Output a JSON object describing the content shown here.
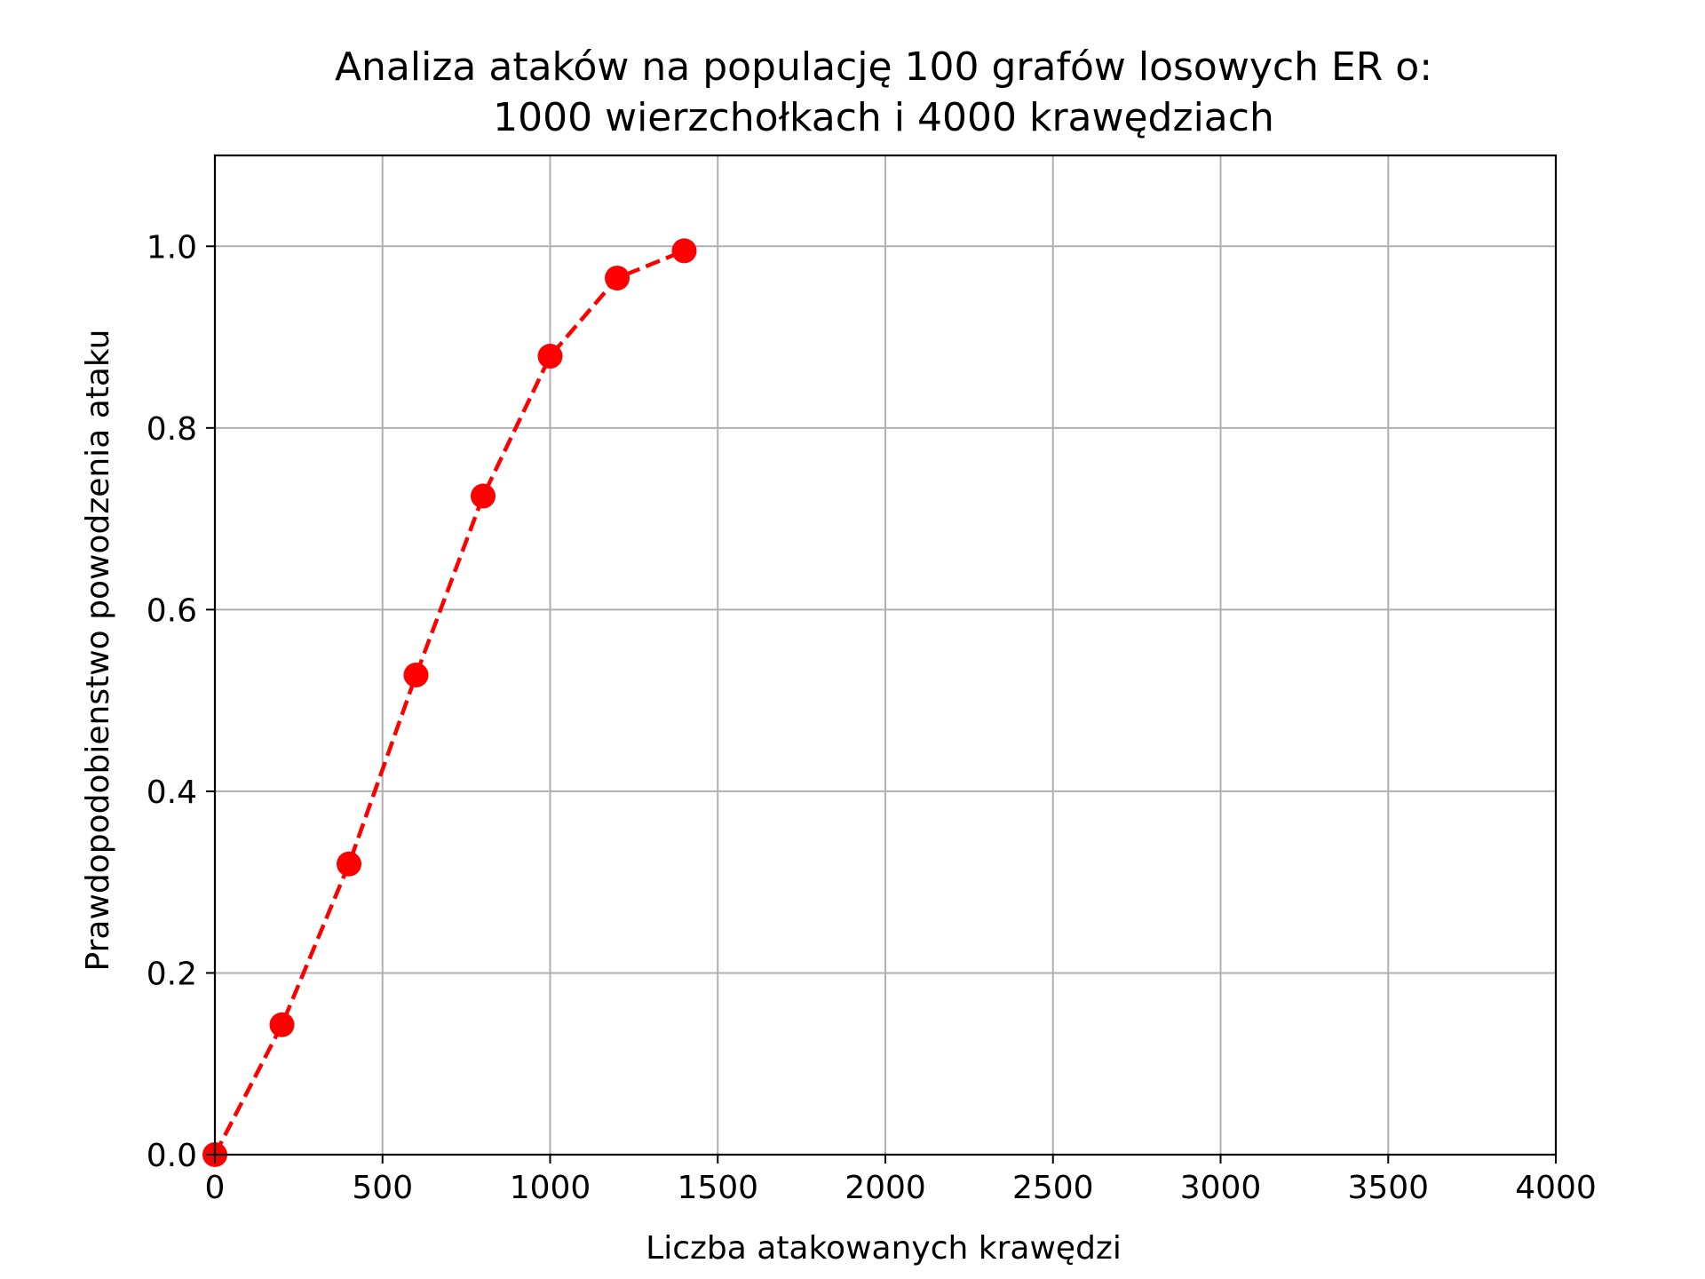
{
  "chart_data": {
    "type": "line",
    "title_lines": [
      "Analiza ataków na populację 100 grafów losowych ER o:",
      "1000 wierzchołkach i 4000 krawędziach"
    ],
    "xlabel": "Liczba atakowanych krawędzi",
    "ylabel": "Prawdopodobienstwo powodzenia ataku",
    "xlim": [
      0,
      4000
    ],
    "ylim": [
      0,
      1.1
    ],
    "x_ticks": [
      0,
      500,
      1000,
      1500,
      2000,
      2500,
      3000,
      3500,
      4000
    ],
    "y_ticks": [
      0.0,
      0.2,
      0.4,
      0.6,
      0.8,
      1.0
    ],
    "x_tick_labels": [
      "0",
      "500",
      "1000",
      "1500",
      "2000",
      "2500",
      "3000",
      "3500",
      "4000"
    ],
    "y_tick_labels": [
      "0.0",
      "0.2",
      "0.4",
      "0.6",
      "0.8",
      "1.0"
    ],
    "grid": true,
    "series": [
      {
        "x": [
          0,
          200,
          400,
          600,
          800,
          1000,
          1200,
          1400
        ],
        "y": [
          0.0,
          0.143,
          0.32,
          0.528,
          0.725,
          0.879,
          0.965,
          0.995
        ],
        "color": "#ff0000",
        "line_style": "dashed",
        "marker": "circle"
      }
    ]
  }
}
